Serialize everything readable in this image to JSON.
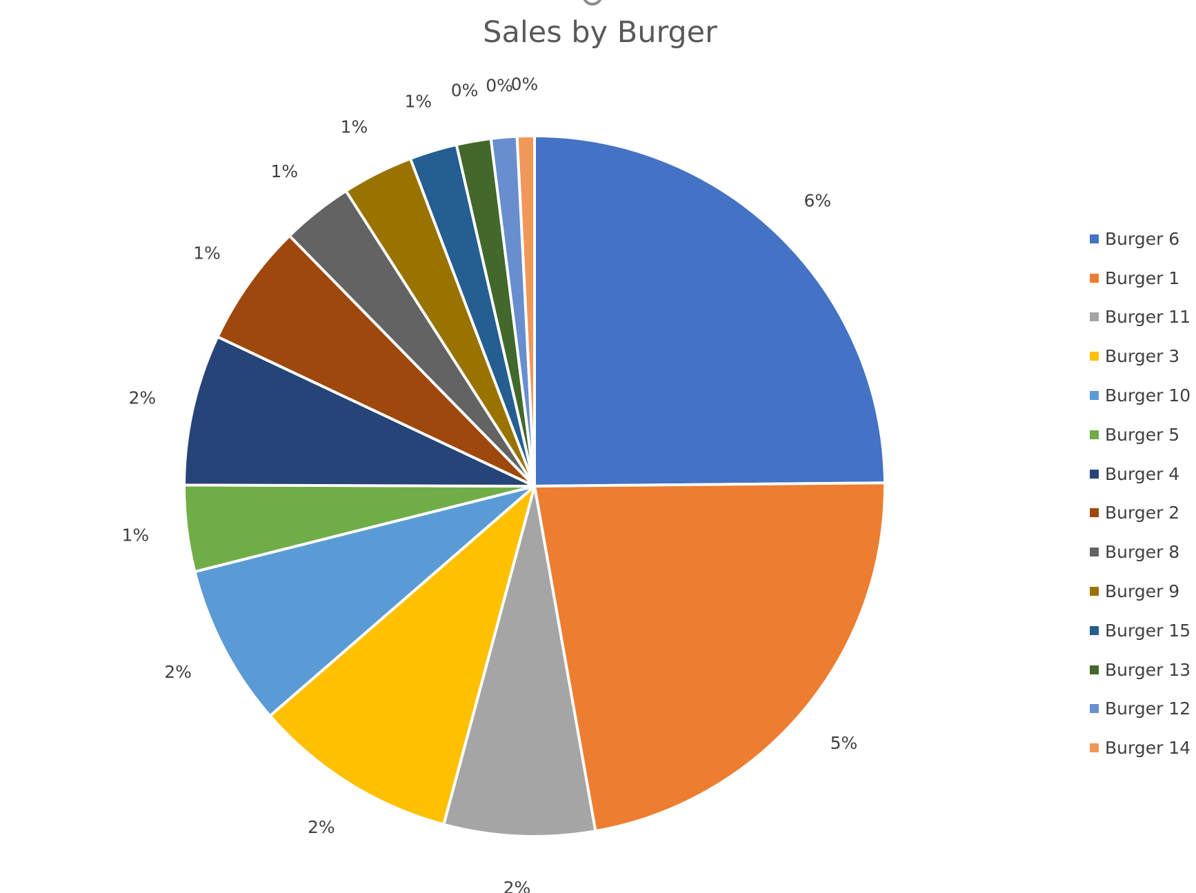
{
  "chart_data": {
    "type": "pie",
    "title": "Sales by Burger",
    "legend_position": "right",
    "start_angle_deg": 0,
    "direction": "clockwise",
    "slices": [
      {
        "name": "Burger 6",
        "value": 25.0,
        "label": "6%",
        "color": "#4472C4"
      },
      {
        "name": "Burger 1",
        "value": 22.5,
        "label": "5%",
        "color": "#ED7D31"
      },
      {
        "name": "Burger 11",
        "value": 7.0,
        "label": "2%",
        "color": "#A5A5A5"
      },
      {
        "name": "Burger 3",
        "value": 9.5,
        "label": "2%",
        "color": "#FFC000"
      },
      {
        "name": "Burger 10",
        "value": 7.5,
        "label": "2%",
        "color": "#5B9BD5"
      },
      {
        "name": "Burger 5",
        "value": 4.0,
        "label": "1%",
        "color": "#70AD47"
      },
      {
        "name": "Burger 4",
        "value": 7.0,
        "label": "2%",
        "color": "#264478"
      },
      {
        "name": "Burger 2",
        "value": 5.7,
        "label": "1%",
        "color": "#9E480E"
      },
      {
        "name": "Burger 8",
        "value": 3.3,
        "label": "1%",
        "color": "#636363"
      },
      {
        "name": "Burger 9",
        "value": 3.3,
        "label": "1%",
        "color": "#997300"
      },
      {
        "name": "Burger 15",
        "value": 2.2,
        "label": "1%",
        "color": "#255E91"
      },
      {
        "name": "Burger 13",
        "value": 1.6,
        "label": "0%",
        "color": "#43682B"
      },
      {
        "name": "Burger 12",
        "value": 1.2,
        "label": "0%",
        "color": "#698ED0"
      },
      {
        "name": "Burger 14",
        "value": 0.8,
        "label": "0%",
        "color": "#F1975A"
      }
    ]
  }
}
